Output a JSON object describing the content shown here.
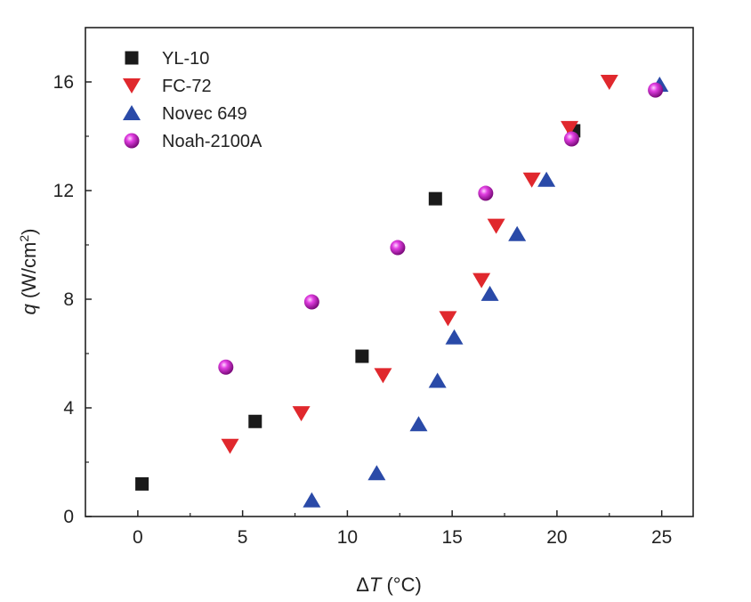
{
  "chart_data": {
    "type": "scatter",
    "xlabel": {
      "prefix": "Δ",
      "var": "T",
      "unit": " (°C)"
    },
    "ylabel": {
      "var": "q",
      "unit": " (W/cm",
      "sup": "2",
      "close": ")"
    },
    "xlim": [
      -2.5,
      26.5
    ],
    "ylim": [
      0,
      18
    ],
    "xticks": [
      0,
      5,
      10,
      15,
      20,
      25
    ],
    "yticks": [
      0,
      4,
      8,
      12,
      16
    ],
    "grid": false,
    "legend_position": "top-left",
    "series": [
      {
        "name": "YL-10",
        "marker": "square",
        "color": "#1a1a1a",
        "points": [
          [
            0.2,
            1.2
          ],
          [
            5.6,
            3.5
          ],
          [
            10.7,
            5.9
          ],
          [
            14.2,
            11.7
          ],
          [
            20.8,
            14.2
          ]
        ]
      },
      {
        "name": "FC-72",
        "marker": "triangle-down",
        "color": "#e0282d",
        "points": [
          [
            4.4,
            2.6
          ],
          [
            7.8,
            3.8
          ],
          [
            11.7,
            5.2
          ],
          [
            14.8,
            7.3
          ],
          [
            16.4,
            8.7
          ],
          [
            17.1,
            10.7
          ],
          [
            18.8,
            12.4
          ],
          [
            20.6,
            14.3
          ],
          [
            22.5,
            16.0
          ]
        ]
      },
      {
        "name": "Novec 649",
        "marker": "triangle-up",
        "color": "#2a4aa8",
        "points": [
          [
            8.3,
            0.6
          ],
          [
            11.4,
            1.6
          ],
          [
            13.4,
            3.4
          ],
          [
            14.3,
            5.0
          ],
          [
            15.1,
            6.6
          ],
          [
            16.8,
            8.2
          ],
          [
            18.1,
            10.4
          ],
          [
            19.5,
            12.4
          ],
          [
            24.9,
            15.9
          ]
        ]
      },
      {
        "name": "Noah-2100A",
        "marker": "sphere",
        "color": "#c81ec8",
        "points": [
          [
            4.2,
            5.5
          ],
          [
            8.3,
            7.9
          ],
          [
            12.4,
            9.9
          ],
          [
            16.6,
            11.9
          ],
          [
            20.7,
            13.9
          ],
          [
            24.7,
            15.7
          ]
        ]
      }
    ]
  }
}
